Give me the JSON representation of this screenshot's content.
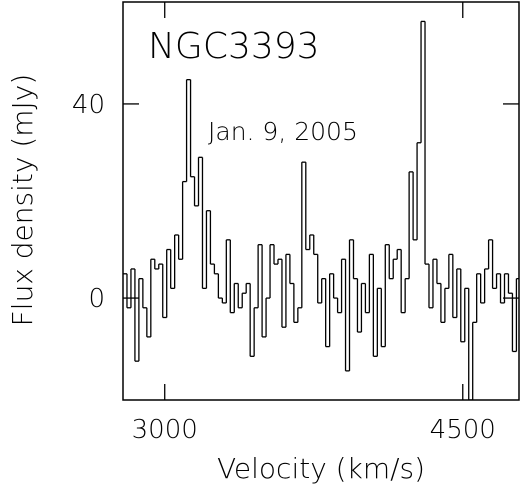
{
  "chart_data": {
    "type": "step",
    "title": "NGC3393",
    "annotation": "Jan. 9, 2005",
    "xlabel": "Velocity (km/s)",
    "ylabel": "Flux density (mJy)",
    "xlim": [
      2790,
      4783
    ],
    "ylim": [
      -21,
      61
    ],
    "xticks": [
      3000,
      4500
    ],
    "yticks": [
      0,
      40
    ],
    "color": "#000000",
    "x": [
      2800,
      2820,
      2840,
      2860,
      2880,
      2900,
      2920,
      2940,
      2960,
      2980,
      3000,
      3020,
      3040,
      3060,
      3080,
      3100,
      3120,
      3140,
      3160,
      3180,
      3200,
      3220,
      3240,
      3260,
      3280,
      3300,
      3320,
      3340,
      3360,
      3380,
      3400,
      3420,
      3440,
      3460,
      3480,
      3500,
      3520,
      3540,
      3560,
      3580,
      3600,
      3620,
      3640,
      3660,
      3680,
      3700,
      3720,
      3740,
      3760,
      3780,
      3800,
      3820,
      3840,
      3860,
      3880,
      3900,
      3920,
      3940,
      3960,
      3980,
      4000,
      4020,
      4040,
      4060,
      4080,
      4100,
      4120,
      4140,
      4160,
      4180,
      4200,
      4220,
      4240,
      4260,
      4280,
      4300,
      4320,
      4340,
      4360,
      4380,
      4400,
      4420,
      4440,
      4460,
      4480,
      4500,
      4520,
      4540,
      4560,
      4580,
      4600,
      4620,
      4640,
      4660,
      4680,
      4700,
      4720,
      4740,
      4760,
      4780
    ],
    "values": [
      5,
      -2,
      6,
      -13,
      4,
      -2,
      -8,
      8,
      6,
      7,
      -4,
      10,
      2,
      13,
      8,
      24,
      45,
      25,
      19,
      29,
      2,
      18,
      7,
      5,
      0,
      -1,
      12,
      -3,
      3,
      -2,
      1,
      3,
      -12,
      -2,
      11,
      -8,
      0,
      11,
      7,
      8,
      -6,
      9,
      3,
      -5,
      -2,
      28,
      10,
      13,
      9,
      -1,
      4,
      -10,
      5,
      0,
      -3,
      8,
      -15,
      12,
      4,
      -7,
      3,
      -3,
      9,
      -12,
      2,
      -10,
      11,
      4,
      8,
      10,
      -3,
      4,
      26,
      12,
      32,
      57,
      7,
      -2,
      8,
      3,
      -5,
      2,
      9,
      -4,
      6,
      -9,
      2,
      -21,
      -5,
      5,
      -1,
      6,
      12,
      2,
      5,
      -1,
      5,
      1,
      -11,
      4
    ]
  }
}
